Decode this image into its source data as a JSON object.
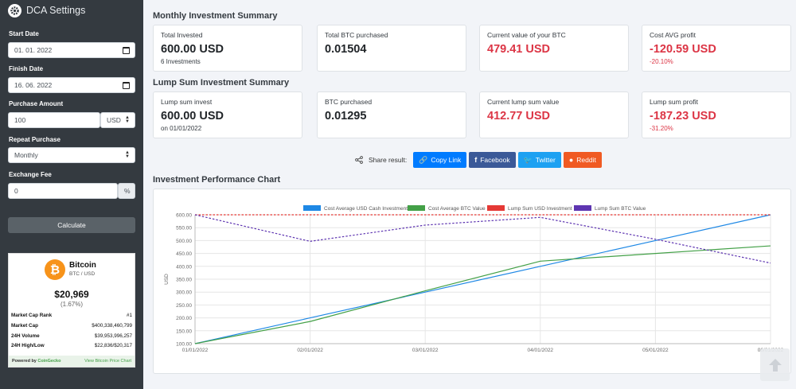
{
  "sidebar": {
    "title": "DCA Settings",
    "start_date_label": "Start Date",
    "start_date_value": "01. 01. 2022",
    "finish_date_label": "Finish Date",
    "finish_date_value": "16. 06. 2022",
    "purchase_amount_label": "Purchase Amount",
    "purchase_amount_value": "100",
    "currency": "USD",
    "repeat_label": "Repeat Purchase",
    "repeat_value": "Monthly",
    "fee_label": "Exchange Fee",
    "fee_value": "0",
    "fee_unit": "%",
    "calculate_label": "Calculate"
  },
  "widget": {
    "logo_symbol": "₿",
    "name": "Bitcoin",
    "pair": "BTC / USD",
    "price": "$20,969",
    "change": "(1.67%)",
    "rows": [
      {
        "k": "Market Cap Rank",
        "v": "#1"
      },
      {
        "k": "Market Cap",
        "v": "$400,338,460,799"
      },
      {
        "k": "24H Volume",
        "v": "$39,953,996,257"
      },
      {
        "k": "24H High/Low",
        "v": "$22,836/$20,317"
      }
    ],
    "powered_prefix": "Powered by ",
    "powered_brand": "CoinGecko",
    "view_link": "View Bitcoin Price Chart"
  },
  "monthly": {
    "title": "Monthly Investment Summary",
    "cards": [
      {
        "label": "Total Invested",
        "value": "600.00 USD",
        "sub": "6 Investments"
      },
      {
        "label": "Total BTC purchased",
        "value": "0.01504",
        "sub": ""
      },
      {
        "label": "Current value of your BTC",
        "value": "479.41 USD",
        "sub": ""
      },
      {
        "label": "Cost AVG profit",
        "value": "-120.59 USD",
        "sub": "-20.10%"
      }
    ]
  },
  "lump": {
    "title": "Lump Sum Investment Summary",
    "cards": [
      {
        "label": "Lump sum invest",
        "value": "600.00 USD",
        "sub": "on 01/01/2022"
      },
      {
        "label": "BTC purchased",
        "value": "0.01295",
        "sub": ""
      },
      {
        "label": "Current lump sum value",
        "value": "412.77 USD",
        "sub": ""
      },
      {
        "label": "Lump sum profit",
        "value": "-187.23 USD",
        "sub": "-31.20%"
      }
    ]
  },
  "share": {
    "label": "Share result:",
    "buttons": [
      {
        "label": "Copy Link",
        "color": "#007bff"
      },
      {
        "label": "Facebook",
        "color": "#3b5998"
      },
      {
        "label": "Twitter",
        "color": "#1da1f2"
      },
      {
        "label": "Reddit",
        "color": "#f05a23"
      }
    ]
  },
  "chart_section_title": "Investment Performance Chart",
  "chart_data": {
    "type": "line",
    "x": [
      "01/01/2022",
      "02/01/2022",
      "03/01/2022",
      "04/01/2022",
      "05/01/2022",
      "06/01/2022"
    ],
    "ylabel": "USD",
    "ylim": [
      100,
      600
    ],
    "yticks": [
      "100.00",
      "150.00",
      "200.00",
      "250.00",
      "300.00",
      "350.00",
      "400.00",
      "450.00",
      "500.00",
      "550.00",
      "600.00"
    ],
    "legend_position": "top",
    "series": [
      {
        "name": "Cost Average USD Cash Investment",
        "color": "#1e88e5",
        "dash": false,
        "values": [
          100,
          200,
          300,
          400,
          500,
          600
        ]
      },
      {
        "name": "Cost Average BTC Value",
        "color": "#43a047",
        "dash": false,
        "values": [
          100,
          186,
          305,
          420,
          450,
          479.41
        ]
      },
      {
        "name": "Lump Sum USD Investment",
        "color": "#e53935",
        "dash": true,
        "values": [
          600,
          600,
          600,
          600,
          600,
          600
        ]
      },
      {
        "name": "Lump Sum BTC Value",
        "color": "#5e35b1",
        "dash": true,
        "values": [
          600,
          497,
          560,
          590,
          505,
          412.77
        ]
      }
    ]
  }
}
